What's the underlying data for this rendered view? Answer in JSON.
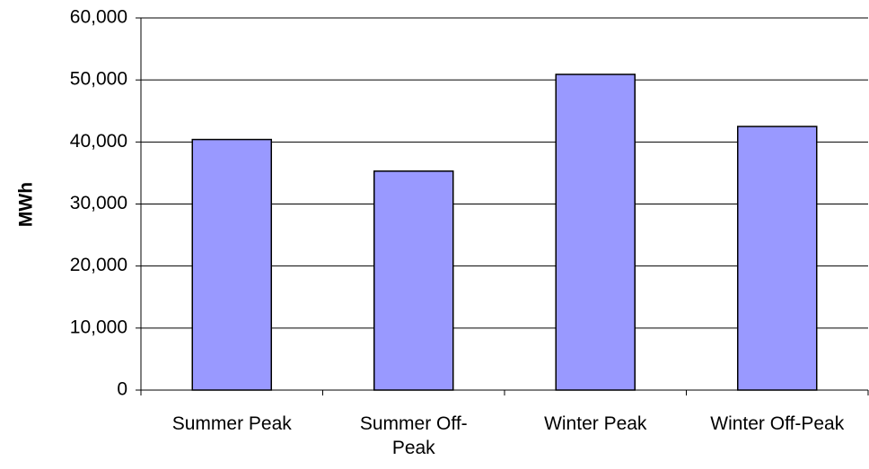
{
  "chart_data": {
    "type": "bar",
    "y_label": "MWh",
    "categories": [
      "Summer Peak",
      "Summer Off-Peak",
      "Winter Peak",
      "Winter Off-Peak"
    ],
    "values": [
      40400,
      35300,
      50900,
      42500
    ],
    "color": "#9999ff",
    "ylim": [
      0,
      60000
    ],
    "yticks": [
      0,
      {
        "value": 10000,
        "label": "10,000"
      },
      {
        "value": 20000,
        "label": "20,000"
      },
      {
        "value": 30000,
        "label": "30,000"
      },
      {
        "value": 40000,
        "label": "40,000"
      },
      {
        "value": 50000,
        "label": "50,000"
      },
      {
        "value": 60000,
        "label": "60,000"
      }
    ],
    "grid": true
  }
}
